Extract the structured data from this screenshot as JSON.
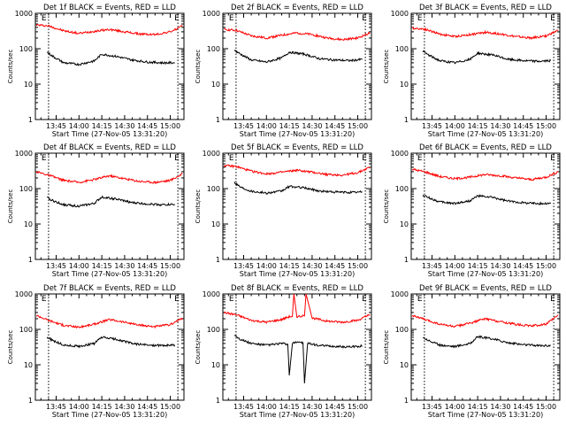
{
  "figure": {
    "xlabel": "Start Time (27-Nov-05 13:31:20)",
    "ylabel": "Counts/sec",
    "time_ticks": [
      "13:45",
      "14:00",
      "14:15",
      "14:30",
      "14:45",
      "15:00"
    ],
    "y_ticks": [
      "1",
      "10",
      "100",
      "1000"
    ],
    "marker_label": "E",
    "colors": {
      "events": "#000000",
      "lld": "#ff0000",
      "axes": "#000000"
    }
  },
  "chart_data": [
    {
      "type": "line",
      "title": "Det 1f BLACK = Events, RED = LLD",
      "xlabel": "Start Time (27-Nov-05 13:31:20)",
      "ylabel": "Counts/sec",
      "y_scale": "log",
      "ylim": [
        1,
        1000
      ],
      "xlim": [
        "13:31:20",
        "15:09"
      ],
      "event_markers": [
        "13:40",
        "15:05"
      ],
      "series": [
        {
          "name": "RED = LLD",
          "color": "#ff0000",
          "x": [
            "13:32",
            "13:40",
            "13:50",
            "14:00",
            "14:10",
            "14:20",
            "14:30",
            "14:40",
            "14:50",
            "15:00",
            "15:08"
          ],
          "values": [
            470,
            440,
            320,
            270,
            310,
            350,
            300,
            260,
            250,
            300,
            430
          ]
        },
        {
          "name": "BLACK = Events",
          "color": "#000000",
          "x": [
            "13:39",
            "13:43",
            "13:50",
            "14:00",
            "14:10",
            "14:15",
            "14:25",
            "14:35",
            "14:45",
            "14:55",
            "15:03"
          ],
          "values": [
            80,
            60,
            40,
            36,
            45,
            70,
            60,
            48,
            42,
            40,
            40
          ]
        }
      ]
    },
    {
      "type": "line",
      "title": "Det 2f BLACK = Events, RED = LLD",
      "xlabel": "Start Time (27-Nov-05 13:31:20)",
      "ylabel": "Counts/sec",
      "y_scale": "log",
      "ylim": [
        1,
        1000
      ],
      "xlim": [
        "13:31:20",
        "15:09"
      ],
      "event_markers": [
        "13:40",
        "15:05"
      ],
      "series": [
        {
          "name": "RED = LLD",
          "color": "#ff0000",
          "x": [
            "13:32",
            "13:40",
            "13:50",
            "14:00",
            "14:10",
            "14:20",
            "14:30",
            "14:40",
            "14:50",
            "15:00",
            "15:08"
          ],
          "values": [
            350,
            330,
            230,
            200,
            240,
            280,
            250,
            200,
            180,
            200,
            280
          ]
        },
        {
          "name": "BLACK = Events",
          "color": "#000000",
          "x": [
            "13:39",
            "13:43",
            "13:50",
            "14:00",
            "14:10",
            "14:15",
            "14:25",
            "14:35",
            "14:45",
            "14:55",
            "15:03"
          ],
          "values": [
            90,
            70,
            48,
            42,
            55,
            80,
            70,
            52,
            48,
            46,
            50
          ]
        }
      ]
    },
    {
      "type": "line",
      "title": "Det 3f BLACK = Events, RED = LLD",
      "xlabel": "Start Time (27-Nov-05 13:31:20)",
      "ylabel": "Counts/sec",
      "y_scale": "log",
      "ylim": [
        1,
        1000
      ],
      "xlim": [
        "13:31:20",
        "15:09"
      ],
      "event_markers": [
        "13:40",
        "15:05"
      ],
      "series": [
        {
          "name": "RED = LLD",
          "color": "#ff0000",
          "x": [
            "13:32",
            "13:40",
            "13:50",
            "14:00",
            "14:10",
            "14:20",
            "14:30",
            "14:40",
            "14:50",
            "15:00",
            "15:08"
          ],
          "values": [
            380,
            360,
            260,
            220,
            250,
            290,
            260,
            220,
            200,
            230,
            330
          ]
        },
        {
          "name": "BLACK = Events",
          "color": "#000000",
          "x": [
            "13:39",
            "13:43",
            "13:50",
            "14:00",
            "14:10",
            "14:15",
            "14:25",
            "14:35",
            "14:45",
            "14:55",
            "15:03"
          ],
          "values": [
            85,
            65,
            46,
            40,
            50,
            75,
            66,
            50,
            46,
            44,
            46
          ]
        }
      ]
    },
    {
      "type": "line",
      "title": "Det 4f BLACK = Events, RED = LLD",
      "xlabel": "Start Time (27-Nov-05 13:31:20)",
      "ylabel": "Counts/sec",
      "y_scale": "log",
      "ylim": [
        1,
        1000
      ],
      "xlim": [
        "13:31:20",
        "15:09"
      ],
      "event_markers": [
        "13:40",
        "15:05"
      ],
      "series": [
        {
          "name": "RED = LLD",
          "color": "#ff0000",
          "x": [
            "13:32",
            "13:40",
            "13:50",
            "14:00",
            "14:10",
            "14:20",
            "14:30",
            "14:40",
            "14:50",
            "15:00",
            "15:08"
          ],
          "values": [
            300,
            240,
            170,
            150,
            180,
            230,
            190,
            160,
            150,
            170,
            260
          ]
        },
        {
          "name": "BLACK = Events",
          "color": "#000000",
          "x": [
            "13:39",
            "13:43",
            "13:50",
            "14:00",
            "14:10",
            "14:15",
            "14:25",
            "14:35",
            "14:45",
            "14:55",
            "15:03"
          ],
          "values": [
            55,
            45,
            35,
            32,
            38,
            58,
            50,
            40,
            37,
            35,
            36
          ]
        }
      ]
    },
    {
      "type": "line",
      "title": "Det 5f BLACK = Events, RED = LLD",
      "xlabel": "Start Time (27-Nov-05 13:31:20)",
      "ylabel": "Counts/sec",
      "y_scale": "log",
      "ylim": [
        1,
        1000
      ],
      "xlim": [
        "13:31:20",
        "15:09"
      ],
      "event_markers": [
        "13:40",
        "15:05"
      ],
      "series": [
        {
          "name": "RED = LLD",
          "color": "#ff0000",
          "x": [
            "13:32",
            "13:40",
            "13:50",
            "14:00",
            "14:10",
            "14:20",
            "14:30",
            "14:40",
            "14:50",
            "15:00",
            "15:08"
          ],
          "values": [
            450,
            420,
            310,
            260,
            290,
            330,
            290,
            250,
            240,
            280,
            400
          ]
        },
        {
          "name": "BLACK = Events",
          "color": "#000000",
          "x": [
            "13:39",
            "13:43",
            "13:50",
            "14:00",
            "14:10",
            "14:15",
            "14:25",
            "14:35",
            "14:45",
            "14:55",
            "15:03"
          ],
          "values": [
            150,
            110,
            85,
            75,
            85,
            115,
            105,
            85,
            80,
            78,
            80
          ]
        }
      ]
    },
    {
      "type": "line",
      "title": "Det 6f BLACK = Events, RED = LLD",
      "xlabel": "Start Time (27-Nov-05 13:31:20)",
      "ylabel": "Counts/sec",
      "y_scale": "log",
      "ylim": [
        1,
        1000
      ],
      "xlim": [
        "13:31:20",
        "15:09"
      ],
      "event_markers": [
        "13:40",
        "15:05"
      ],
      "series": [
        {
          "name": "RED = LLD",
          "color": "#ff0000",
          "x": [
            "13:32",
            "13:40",
            "13:50",
            "14:00",
            "14:10",
            "14:20",
            "14:30",
            "14:40",
            "14:50",
            "15:00",
            "15:08"
          ],
          "values": [
            350,
            300,
            220,
            190,
            210,
            250,
            230,
            200,
            180,
            210,
            300
          ]
        },
        {
          "name": "BLACK = Events",
          "color": "#000000",
          "x": [
            "13:39",
            "13:43",
            "13:50",
            "14:00",
            "14:10",
            "14:15",
            "14:25",
            "14:35",
            "14:45",
            "14:55",
            "15:03"
          ],
          "values": [
            65,
            55,
            42,
            38,
            45,
            62,
            56,
            44,
            40,
            38,
            38
          ]
        }
      ]
    },
    {
      "type": "line",
      "title": "Det 7f BLACK = Events, RED = LLD",
      "xlabel": "Start Time (27-Nov-05 13:31:20)",
      "ylabel": "Counts/sec",
      "y_scale": "log",
      "ylim": [
        1,
        1000
      ],
      "xlim": [
        "13:31:20",
        "15:09"
      ],
      "event_markers": [
        "13:40",
        "15:05"
      ],
      "series": [
        {
          "name": "RED = LLD",
          "color": "#ff0000",
          "x": [
            "13:32",
            "13:40",
            "13:50",
            "14:00",
            "14:10",
            "14:20",
            "14:30",
            "14:40",
            "14:50",
            "15:00",
            "15:08"
          ],
          "values": [
            250,
            180,
            130,
            115,
            140,
            190,
            160,
            130,
            120,
            135,
            210
          ]
        },
        {
          "name": "BLACK = Events",
          "color": "#000000",
          "x": [
            "13:39",
            "13:43",
            "13:50",
            "14:00",
            "14:10",
            "14:15",
            "14:25",
            "14:35",
            "14:45",
            "14:55",
            "15:03"
          ],
          "values": [
            60,
            48,
            36,
            33,
            40,
            60,
            52,
            40,
            36,
            35,
            36
          ]
        }
      ]
    },
    {
      "type": "line",
      "title": "Det 8f BLACK = Events, RED = LLD",
      "xlabel": "Start Time (27-Nov-05 13:31:20)",
      "ylabel": "Counts/sec",
      "y_scale": "log",
      "ylim": [
        1,
        1000
      ],
      "xlim": [
        "13:31:20",
        "15:09"
      ],
      "event_markers": [
        "13:40",
        "15:05"
      ],
      "series": [
        {
          "name": "RED = LLD",
          "color": "#ff0000",
          "x": [
            "13:32",
            "13:40",
            "13:50",
            "14:00",
            "14:10",
            "14:15",
            "14:17",
            "14:18",
            "14:20",
            "14:25",
            "14:26",
            "14:30",
            "14:40",
            "14:50",
            "15:00",
            "15:08"
          ],
          "values": [
            300,
            260,
            180,
            160,
            190,
            230,
            230,
            1000,
            230,
            240,
            1000,
            210,
            170,
            160,
            180,
            260
          ]
        },
        {
          "name": "BLACK = Events",
          "color": "#000000",
          "x": [
            "13:39",
            "13:43",
            "13:50",
            "14:00",
            "14:10",
            "14:14",
            "14:15",
            "14:17",
            "14:20",
            "14:24",
            "14:25",
            "14:27",
            "14:35",
            "14:45",
            "14:55",
            "15:03"
          ],
          "values": [
            70,
            52,
            40,
            36,
            40,
            38,
            5,
            40,
            45,
            42,
            3,
            40,
            35,
            33,
            32,
            34
          ]
        }
      ]
    },
    {
      "type": "line",
      "title": "Det 9f BLACK = Events, RED = LLD",
      "xlabel": "Start Time (27-Nov-05 13:31:20)",
      "ylabel": "Counts/sec",
      "y_scale": "log",
      "ylim": [
        1,
        1000
      ],
      "xlim": [
        "13:31:20",
        "15:09"
      ],
      "event_markers": [
        "13:40",
        "15:05"
      ],
      "series": [
        {
          "name": "RED = LLD",
          "color": "#ff0000",
          "x": [
            "13:32",
            "13:40",
            "13:50",
            "14:00",
            "14:10",
            "14:20",
            "14:30",
            "14:40",
            "14:50",
            "15:00",
            "15:08"
          ],
          "values": [
            250,
            190,
            140,
            120,
            150,
            200,
            165,
            140,
            125,
            140,
            250
          ]
        },
        {
          "name": "BLACK = Events",
          "color": "#000000",
          "x": [
            "13:39",
            "13:43",
            "13:50",
            "14:00",
            "14:10",
            "14:15",
            "14:25",
            "14:35",
            "14:45",
            "14:55",
            "15:03"
          ],
          "values": [
            60,
            48,
            36,
            33,
            40,
            62,
            54,
            42,
            37,
            35,
            35
          ]
        }
      ]
    }
  ]
}
